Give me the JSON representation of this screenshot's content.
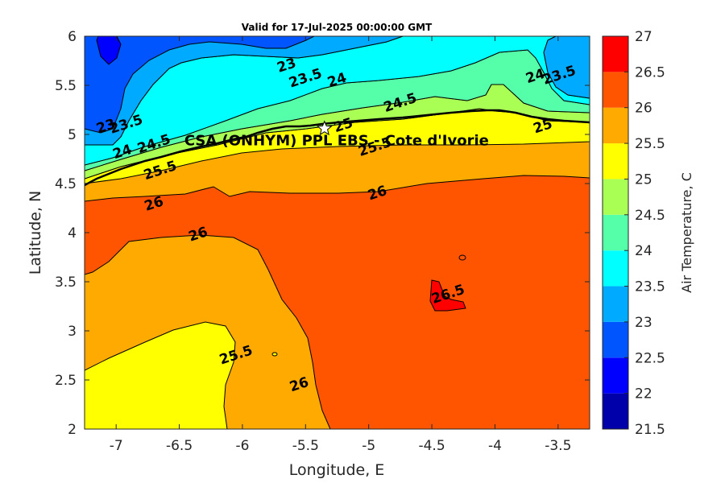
{
  "chart_data": {
    "type": "heatmap",
    "title": "Valid for 17-Jul-2025 00:00:00 GMT",
    "xlabel": "Longitude, E",
    "ylabel": "Latitude, N",
    "xlim": [
      -7.25,
      -3.25
    ],
    "ylim": [
      2,
      6
    ],
    "x_ticks": [
      -7,
      -6.5,
      -6,
      -5.5,
      -5,
      -4.5,
      -4,
      -3.5
    ],
    "y_ticks": [
      2,
      2.5,
      3,
      3.5,
      4,
      4.5,
      5,
      5.5,
      6
    ],
    "colorbar": {
      "label": "Air Temperature, C",
      "levels": [
        21.5,
        22,
        22.5,
        23,
        23.5,
        24,
        24.5,
        25,
        25.5,
        26,
        26.5,
        27
      ],
      "colors": [
        "#0000aa",
        "#0000ff",
        "#0055ff",
        "#00aaff",
        "#00ffff",
        "#55ffaa",
        "#aaff55",
        "#ffff00",
        "#ffaa00",
        "#ff5500",
        "#ff0000",
        "#aa0000"
      ],
      "tick_labels": [
        "21.5",
        "22",
        "22.5",
        "23",
        "23.5",
        "24",
        "24.5",
        "25",
        "25.5",
        "26",
        "26.5",
        "27"
      ]
    },
    "station": {
      "name": "CSA (ONHYM) PPL EBS - Cote d'Ivorie",
      "lon": -5.35,
      "lat": 5.06
    },
    "contour_labels": [
      {
        "text": "23",
        "lon": -5.65,
        "lat": 5.7
      },
      {
        "text": "23.5",
        "lon": -5.5,
        "lat": 5.57
      },
      {
        "text": "24",
        "lon": -5.25,
        "lat": 5.55
      },
      {
        "text": "24.5",
        "lon": -4.75,
        "lat": 5.32
      },
      {
        "text": "23",
        "lon": -7.08,
        "lat": 5.08
      },
      {
        "text": "23.5",
        "lon": -6.92,
        "lat": 5.1
      },
      {
        "text": "24",
        "lon": -6.95,
        "lat": 4.82
      },
      {
        "text": "24.5",
        "lon": -6.7,
        "lat": 4.9
      },
      {
        "text": "25.5",
        "lon": -6.65,
        "lat": 4.63
      },
      {
        "text": "25",
        "lon": -5.2,
        "lat": 5.09
      },
      {
        "text": "25.5",
        "lon": -4.95,
        "lat": 4.87
      },
      {
        "text": "26",
        "lon": -6.7,
        "lat": 4.29
      },
      {
        "text": "26",
        "lon": -4.93,
        "lat": 4.4
      },
      {
        "text": "26",
        "lon": -6.35,
        "lat": 3.98
      },
      {
        "text": "24",
        "lon": -3.68,
        "lat": 5.59
      },
      {
        "text": "23.5",
        "lon": -3.49,
        "lat": 5.6
      },
      {
        "text": "25",
        "lon": -3.62,
        "lat": 5.08
      },
      {
        "text": "26.5",
        "lon": -4.37,
        "lat": 3.37
      },
      {
        "text": "25.5",
        "lon": -6.05,
        "lat": 2.75
      },
      {
        "text": "26",
        "lon": -5.55,
        "lat": 2.45
      }
    ]
  }
}
